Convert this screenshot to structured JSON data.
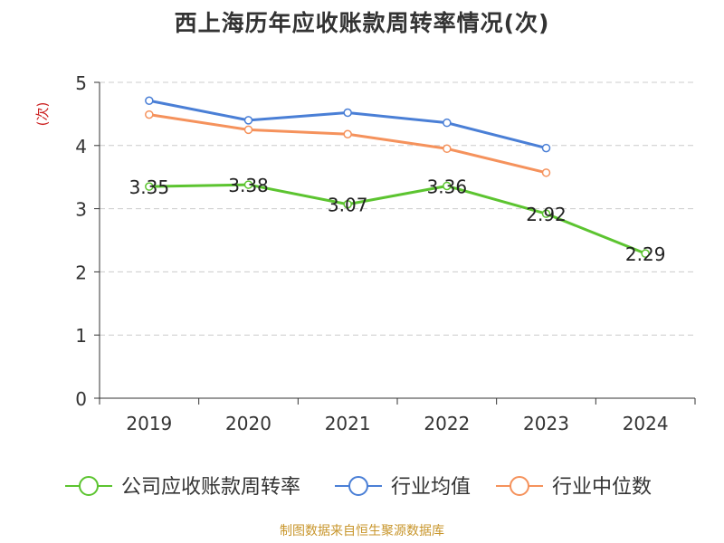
{
  "chart_data": {
    "type": "line",
    "title": "西上海历年应收账款周转率情况(次)",
    "ylabel": "(次)",
    "xlabel": "",
    "categories": [
      "2019",
      "2020",
      "2021",
      "2022",
      "2023",
      "2024"
    ],
    "ylim": [
      0,
      5
    ],
    "yticks": [
      0,
      1,
      2,
      3,
      4,
      5
    ],
    "grid": true,
    "legend_position": "bottom",
    "series": [
      {
        "name": "公司应收账款周转率",
        "values": [
          3.35,
          3.38,
          3.07,
          3.36,
          2.92,
          2.29
        ],
        "labels": [
          "3.35",
          "3.38",
          "3.07",
          "3.36",
          "2.92",
          "2.29"
        ],
        "color": "#5cc430"
      },
      {
        "name": "行业均值",
        "values": [
          4.71,
          4.4,
          4.52,
          4.36,
          3.96,
          null
        ],
        "color": "#4a7fd6"
      },
      {
        "name": "行业中位数",
        "values": [
          4.49,
          4.25,
          4.18,
          3.95,
          3.57,
          null
        ],
        "color": "#f5925c"
      }
    ]
  },
  "source": "制图数据来自恒生聚源数据库"
}
